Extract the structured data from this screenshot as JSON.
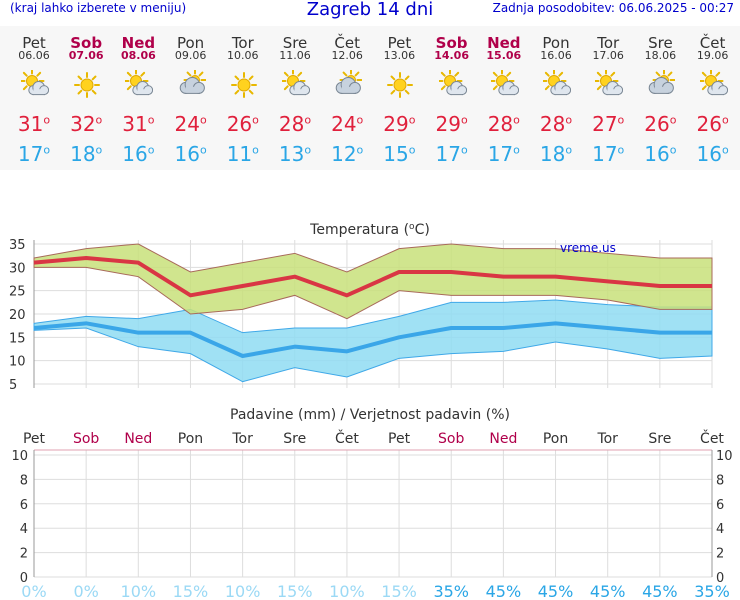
{
  "header": {
    "menu_note": "(kraj lahko izberete v meniju)",
    "title": "Zagreb 14 dni",
    "updated": "Zadnja posodobitev: 06.06.2025 - 00:27"
  },
  "degree_symbol": "o",
  "colors": {
    "weekend": "#b0004a",
    "max_line": "#d93644",
    "max_band": "#c8e07a",
    "min_line": "#3aa6e8",
    "min_band": "#8fdcf2",
    "title_blue": "#0000cc",
    "prob_low": "#9bd9f5",
    "prob_high": "#2aa6e6"
  },
  "forecast": {
    "days": [
      {
        "day": "Pet",
        "date": "06.06",
        "weekend": false,
        "icon": "sun-cloud-icon",
        "max": "31",
        "min": "17"
      },
      {
        "day": "Sob",
        "date": "07.06",
        "weekend": true,
        "icon": "sun-icon",
        "max": "32",
        "min": "18"
      },
      {
        "day": "Ned",
        "date": "08.06",
        "weekend": true,
        "icon": "sun-cloud-icon",
        "max": "31",
        "min": "16"
      },
      {
        "day": "Pon",
        "date": "09.06",
        "weekend": false,
        "icon": "cloud-sun-icon",
        "max": "24",
        "min": "16"
      },
      {
        "day": "Tor",
        "date": "10.06",
        "weekend": false,
        "icon": "sun-icon",
        "max": "26",
        "min": "11"
      },
      {
        "day": "Sre",
        "date": "11.06",
        "weekend": false,
        "icon": "sun-cloud-icon",
        "max": "28",
        "min": "13"
      },
      {
        "day": "Čet",
        "date": "12.06",
        "weekend": false,
        "icon": "cloud-sun-icon",
        "max": "24",
        "min": "12"
      },
      {
        "day": "Pet",
        "date": "13.06",
        "weekend": false,
        "icon": "sun-icon",
        "max": "29",
        "min": "15"
      },
      {
        "day": "Sob",
        "date": "14.06",
        "weekend": true,
        "icon": "sun-cloud-icon",
        "max": "29",
        "min": "17"
      },
      {
        "day": "Ned",
        "date": "15.06",
        "weekend": true,
        "icon": "sun-cloud-icon",
        "max": "28",
        "min": "17"
      },
      {
        "day": "Pon",
        "date": "16.06",
        "weekend": false,
        "icon": "sun-cloud-icon",
        "max": "28",
        "min": "18"
      },
      {
        "day": "Tor",
        "date": "17.06",
        "weekend": false,
        "icon": "sun-cloud-icon",
        "max": "27",
        "min": "17"
      },
      {
        "day": "Sre",
        "date": "18.06",
        "weekend": false,
        "icon": "cloud-sun-icon",
        "max": "26",
        "min": "16"
      },
      {
        "day": "Čet",
        "date": "19.06",
        "weekend": false,
        "icon": "sun-cloud-icon",
        "max": "26",
        "min": "16"
      }
    ]
  },
  "chart_data": [
    {
      "type": "line",
      "title_prefix": "Temperatura (",
      "title_sup": "o",
      "title_suffix": "C)",
      "watermark": "vreme.us",
      "ylim": [
        5,
        35
      ],
      "yticks": [
        "35",
        "30",
        "25",
        "20",
        "15",
        "10",
        "5"
      ],
      "series": [
        {
          "values": [
            31,
            32,
            31,
            24,
            26,
            28,
            24,
            29,
            29,
            28,
            28,
            27,
            26,
            26
          ]
        },
        {
          "values": [
            32,
            34,
            35,
            29,
            31,
            33,
            29,
            34,
            35,
            34,
            34,
            33,
            32,
            32
          ]
        },
        {
          "values": [
            30,
            30,
            28,
            20,
            21,
            24,
            19,
            25,
            24,
            24,
            24,
            23,
            21,
            21
          ]
        },
        {
          "values": [
            17,
            18,
            16,
            16,
            11,
            13,
            12,
            15,
            17,
            17,
            18,
            17,
            16,
            16
          ]
        },
        {
          "values": [
            18,
            19.5,
            19,
            21,
            16,
            17,
            17,
            19.5,
            22.5,
            22.5,
            23,
            22,
            21.5,
            21.5
          ]
        },
        {
          "values": [
            16.5,
            17,
            13,
            11.5,
            5.5,
            8.5,
            6.5,
            10.5,
            11.5,
            12,
            14,
            12.5,
            10.5,
            11
          ]
        }
      ]
    },
    {
      "type": "bar",
      "title": "Padavine (mm) / Verjetnost padavin (%)",
      "categories": [
        "Pet",
        "Sob",
        "Ned",
        "Pon",
        "Tor",
        "Sre",
        "Čet",
        "Pet",
        "Sob",
        "Ned",
        "Pon",
        "Tor",
        "Sre",
        "Čet"
      ],
      "weekend": [
        false,
        true,
        true,
        false,
        false,
        false,
        false,
        false,
        true,
        true,
        false,
        false,
        false,
        false
      ],
      "ylim": [
        0,
        10
      ],
      "yticks": [
        "10",
        "8",
        "6",
        "4",
        "2",
        "0"
      ],
      "precipitation_mm": [
        0,
        0,
        0,
        0,
        0,
        0,
        0,
        0,
        0,
        0,
        0,
        0,
        0,
        0
      ],
      "probability_labels": [
        "0%",
        "0%",
        "10%",
        "15%",
        "10%",
        "15%",
        "10%",
        "15%",
        "35%",
        "45%",
        "45%",
        "45%",
        "45%",
        "35%"
      ],
      "probability": [
        0,
        0,
        10,
        15,
        10,
        15,
        10,
        15,
        35,
        45,
        45,
        45,
        45,
        35
      ]
    }
  ]
}
